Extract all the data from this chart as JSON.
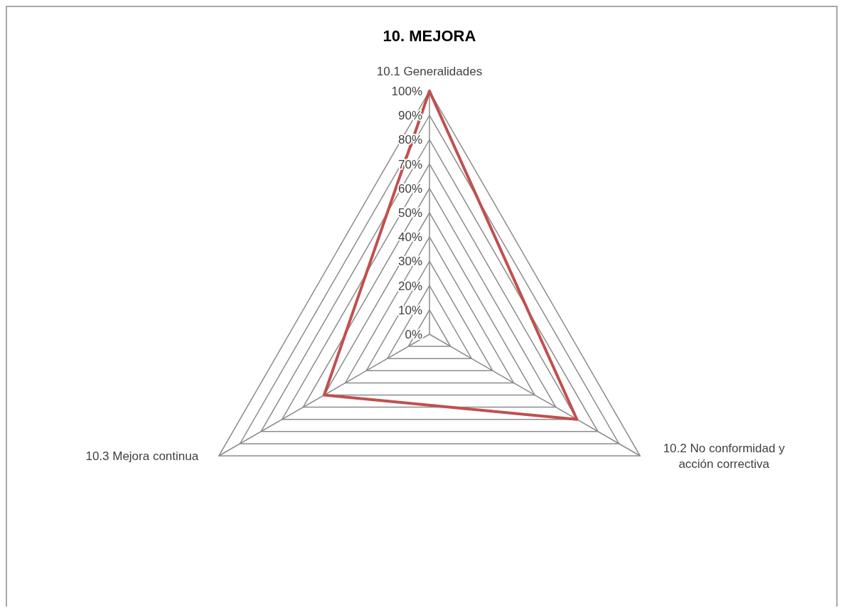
{
  "chart_data": {
    "type": "radar",
    "title": "10. MEJORA",
    "categories": [
      "10.1 Generalidades",
      "10.2 No conformidad y acción correctiva",
      "10.3 Mejora continua"
    ],
    "series": [
      {
        "color": "#c0504d",
        "values": [
          100,
          70,
          50
        ]
      }
    ],
    "ylim": [
      0,
      100
    ],
    "yticks": [
      {
        "value": 0,
        "label": "0%"
      },
      {
        "value": 10,
        "label": "10%"
      },
      {
        "value": 20,
        "label": "20%"
      },
      {
        "value": 30,
        "label": "30%"
      },
      {
        "value": 40,
        "label": "40%"
      },
      {
        "value": 50,
        "label": "50%"
      },
      {
        "value": 60,
        "label": "60%"
      },
      {
        "value": 70,
        "label": "70%"
      },
      {
        "value": 80,
        "label": "80%"
      },
      {
        "value": 90,
        "label": "90%"
      },
      {
        "value": 100,
        "label": "100%"
      }
    ],
    "grid": true
  }
}
